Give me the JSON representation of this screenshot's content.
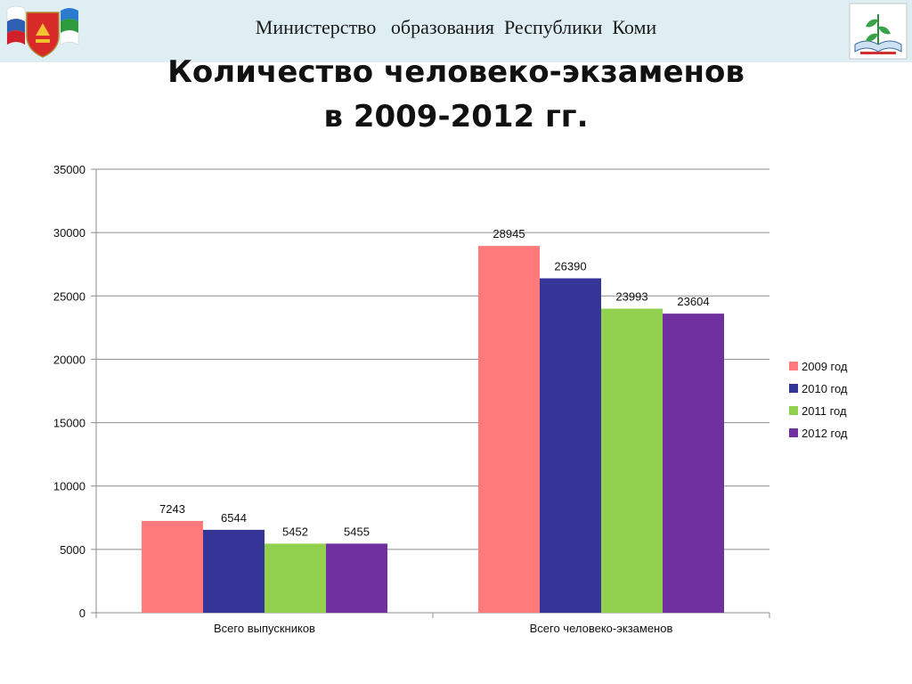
{
  "header": {
    "ministry": "Министерство   образования  Республики  Коми",
    "title_line1": "Количество человеко-экзаменов",
    "title_line2": "в 2009-2012 гг."
  },
  "colors": {
    "header_band": "#dfeef3",
    "series": [
      "#ff7b7b",
      "#353597",
      "#92d050",
      "#7030a0"
    ]
  },
  "chart_data": {
    "type": "bar",
    "categories": [
      "Всего выпускников",
      "Всего человеко-экзаменов"
    ],
    "series": [
      {
        "name": "2009 год",
        "values": [
          7243,
          28945
        ]
      },
      {
        "name": "2010 год",
        "values": [
          6544,
          26390
        ]
      },
      {
        "name": "2011 год",
        "values": [
          5452,
          23993
        ]
      },
      {
        "name": "2012 год",
        "values": [
          5455,
          23604
        ]
      }
    ],
    "ylim": [
      0,
      35000
    ],
    "yticks": [
      0,
      5000,
      10000,
      15000,
      20000,
      25000,
      30000,
      35000
    ],
    "data_labels": true,
    "grid": true,
    "legend_position": "right"
  }
}
